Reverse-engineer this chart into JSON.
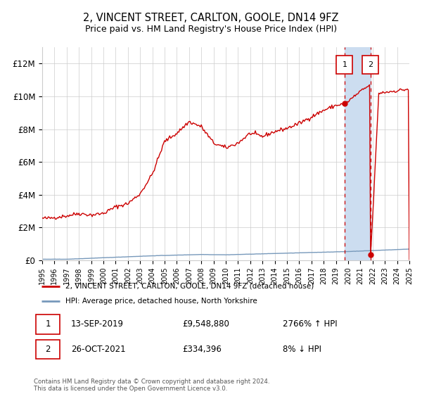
{
  "title": "2, VINCENT STREET, CARLTON, GOOLE, DN14 9FZ",
  "subtitle": "Price paid vs. HM Land Registry's House Price Index (HPI)",
  "ylim": [
    0,
    13000000
  ],
  "yticks": [
    0,
    2000000,
    4000000,
    6000000,
    8000000,
    10000000,
    12000000
  ],
  "ytick_labels": [
    "£0",
    "£2M",
    "£4M",
    "£6M",
    "£8M",
    "£10M",
    "£12M"
  ],
  "marker1_date": 2019.71,
  "marker2_date": 2021.82,
  "marker1_value": 9548880,
  "marker2_value": 334396,
  "legend_line1": "2, VINCENT STREET, CARLTON, GOOLE, DN14 9FZ (detached house)",
  "legend_line2": "HPI: Average price, detached house, North Yorkshire",
  "footnote1_date": "13-SEP-2019",
  "footnote1_price": "£9,548,880",
  "footnote1_hpi": "2766% ↑ HPI",
  "footnote2_date": "26-OCT-2021",
  "footnote2_price": "£334,396",
  "footnote2_hpi": "8% ↓ HPI",
  "copyright": "Contains HM Land Registry data © Crown copyright and database right 2024.\nThis data is licensed under the Open Government Licence v3.0.",
  "line_color": "#cc0000",
  "hpi_color": "#7799bb",
  "shade_color": "#ccddf0",
  "grid_color": "#cccccc",
  "bg_color": "#ffffff"
}
